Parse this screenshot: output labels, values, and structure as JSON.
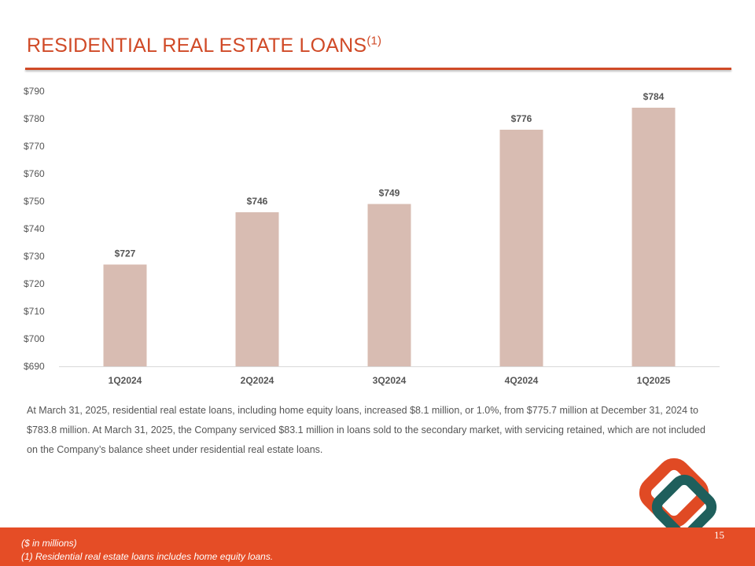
{
  "slide": {
    "title": "RESIDENTIAL REAL ESTATE LOANS",
    "title_superscript": "(1)",
    "body_text": "At March 31, 2025, residential real estate loans, including home equity loans, increased $8.1 million, or 1.0%, from $775.7 million at December 31, 2024 to $783.8 million. At March 31, 2025, the Company serviced $83.1 million in loans sold to the secondary market, with servicing retained, which are not included on the Company’s balance sheet under residential real estate loans.",
    "footnotes": [
      "($ in millions)",
      "(1) Residential real estate loans includes home equity loans."
    ],
    "page_number": "15",
    "logo_icon": "diamond-logo-icon"
  },
  "colors": {
    "accent": "#D04A27",
    "footer": "#E54D26",
    "bar": "#D8BCB2",
    "logo_outer": "#E04A24",
    "logo_inner": "#1F5F5C"
  },
  "chart_data": {
    "type": "bar",
    "title": "",
    "xlabel": "",
    "ylabel": "",
    "categories": [
      "1Q2024",
      "2Q2024",
      "3Q2024",
      "4Q2024",
      "1Q2025"
    ],
    "values": [
      727,
      746,
      749,
      776,
      784
    ],
    "data_labels": [
      "$727",
      "$746",
      "$749",
      "$776",
      "$784"
    ],
    "ylim": [
      690,
      790
    ],
    "yticks": [
      690,
      700,
      710,
      720,
      730,
      740,
      750,
      760,
      770,
      780,
      790
    ],
    "ytick_labels": [
      "$690",
      "$700",
      "$710",
      "$720",
      "$730",
      "$740",
      "$750",
      "$760",
      "$770",
      "$780",
      "$790"
    ],
    "grid": false,
    "legend": "none"
  }
}
